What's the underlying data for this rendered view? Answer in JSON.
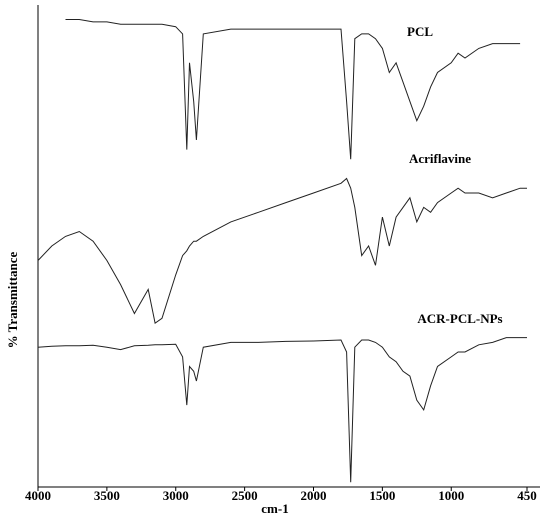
{
  "chart_data": {
    "type": "line",
    "x_label": "cm-1",
    "y_label": "% Transmittance",
    "xlim": [
      4000,
      450
    ],
    "ylim": [
      0,
      100
    ],
    "xticks": [
      4000,
      3500,
      3000,
      2500,
      2000,
      1500,
      1000,
      450
    ],
    "x": [
      4000,
      3900,
      3800,
      3700,
      3600,
      3500,
      3400,
      3300,
      3200,
      3150,
      3100,
      3000,
      2950,
      2920,
      2900,
      2870,
      2850,
      2800,
      2600,
      2400,
      2200,
      2000,
      1800,
      1760,
      1730,
      1700,
      1650,
      1600,
      1550,
      1500,
      1450,
      1400,
      1350,
      1300,
      1250,
      1200,
      1150,
      1100,
      1000,
      950,
      900,
      800,
      700,
      600,
      500,
      450
    ],
    "series": [
      {
        "name": "PCL",
        "color": "#222222",
        "values": [
          null,
          null,
          97,
          97,
          96.5,
          96.5,
          96,
          96,
          96,
          96,
          96,
          95.5,
          94,
          70,
          88,
          80,
          72,
          94,
          95,
          95,
          95,
          95,
          95,
          80,
          68,
          93,
          94,
          94,
          93,
          91,
          86,
          88,
          84,
          80,
          76,
          79,
          83,
          86,
          88,
          90,
          89,
          91,
          92,
          92,
          92,
          null
        ]
      },
      {
        "name": "Acriflavine",
        "color": "#222222",
        "values": [
          47,
          50,
          52,
          53,
          51,
          47,
          42,
          36,
          41,
          34,
          35,
          44,
          48,
          49,
          50,
          51,
          51,
          52,
          55,
          57,
          59,
          61,
          63,
          64,
          62,
          58,
          48,
          50,
          46,
          56,
          50,
          56,
          58,
          60,
          55,
          58,
          57,
          59,
          61,
          62,
          61,
          61,
          60,
          61,
          62,
          62
        ]
      },
      {
        "name": "ACR-PCL-NPs",
        "color": "#222222",
        "values": [
          29,
          29.2,
          29.3,
          29.3,
          29.4,
          29,
          28.5,
          29.3,
          29.4,
          29.5,
          29.5,
          29.6,
          27,
          17,
          25,
          24,
          22,
          29,
          30,
          30,
          30.2,
          30.3,
          30.5,
          28,
          1,
          29,
          30.5,
          30.5,
          30,
          29,
          27,
          26,
          24,
          23,
          18,
          16,
          21,
          25,
          27,
          28,
          28,
          29.5,
          30,
          31,
          31,
          31
        ]
      }
    ]
  }
}
